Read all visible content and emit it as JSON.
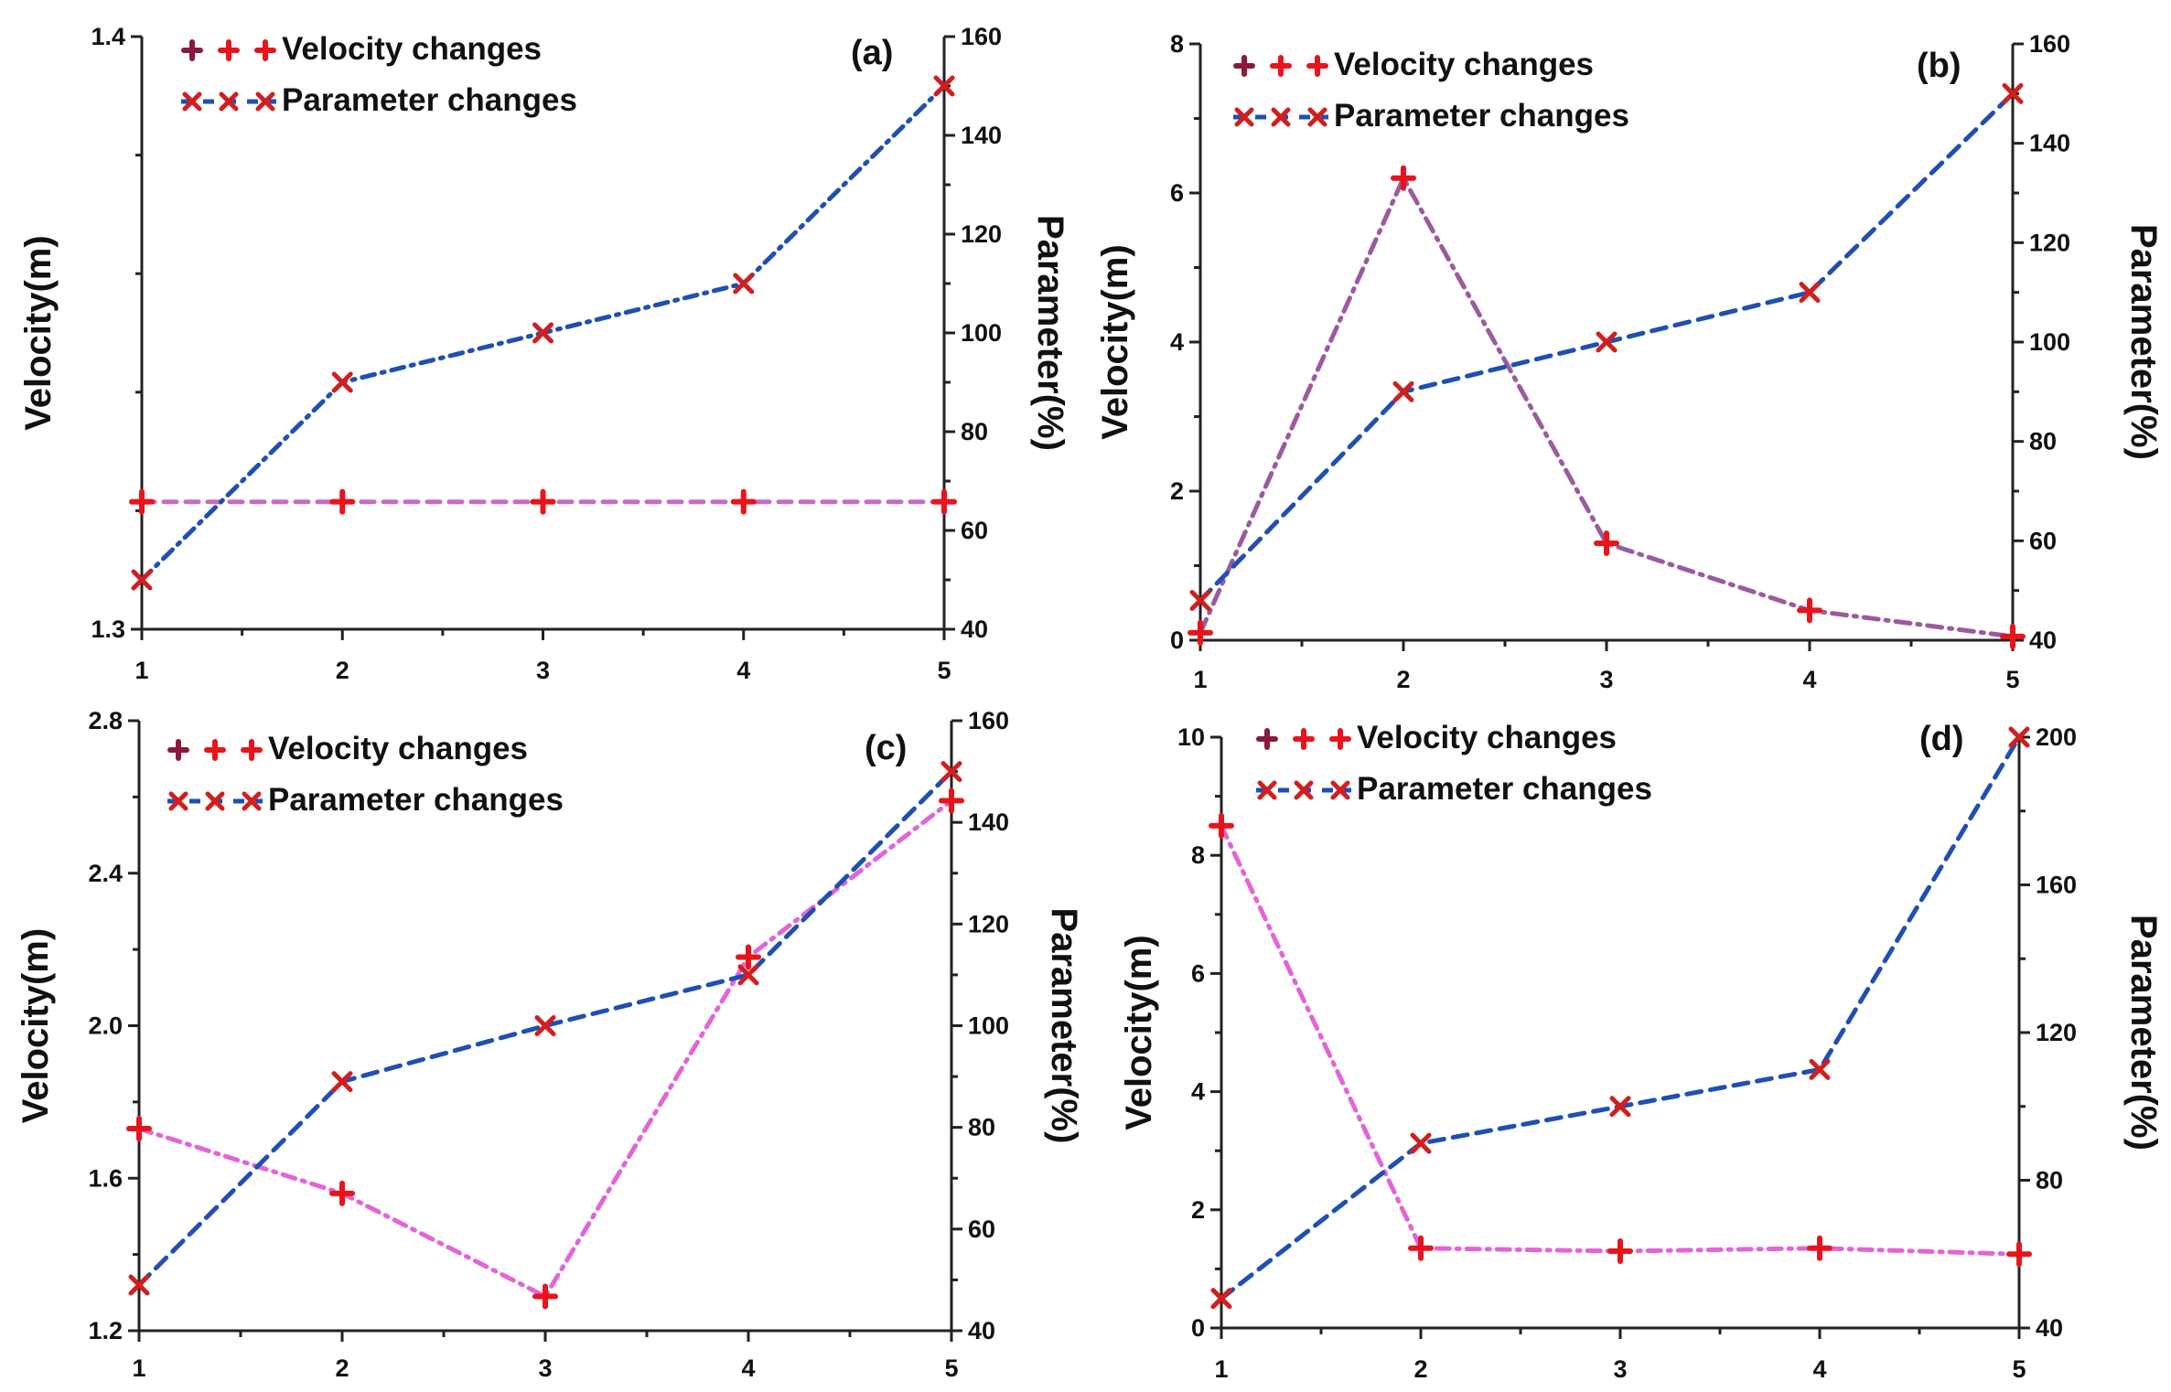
{
  "figure": {
    "colors": {
      "axis": "#222222",
      "velocity_marker": "#e8141c",
      "parameter_marker": "#d21e1e",
      "legend_velocity_dark": "#8b1a3a",
      "legend_parameter_blue": "#1f4fb4"
    }
  },
  "chart_data": [
    {
      "type": "line",
      "panel": "(a)",
      "x": [
        1,
        2,
        3,
        4,
        5
      ],
      "xticks": [
        "1",
        "2",
        "3",
        "4",
        "5"
      ],
      "ylabel": "Velocity(m)",
      "ylim": [
        1.3,
        1.4
      ],
      "yticks": [
        "1.3",
        "1.4"
      ],
      "y2label": "Parameter(%)",
      "y2lim": [
        40,
        160
      ],
      "y2ticks": [
        "40",
        "60",
        "80",
        "100",
        "120",
        "140",
        "160"
      ],
      "legend": [
        "Velocity changes",
        "Parameter changes"
      ],
      "legend_placement": "top-left",
      "series": [
        {
          "name": "Velocity changes",
          "axis": "left",
          "values": [
            1.3215,
            1.3215,
            1.3215,
            1.3215,
            1.3215
          ],
          "color": "#c86bc4",
          "dash": "14 10"
        },
        {
          "name": "Parameter changes",
          "axis": "right",
          "values": [
            50,
            90,
            100,
            110,
            150
          ],
          "color": "#1f4fb4",
          "dash": "14 8 3 8"
        }
      ]
    },
    {
      "type": "line",
      "panel": "(b)",
      "x": [
        1,
        2,
        3,
        4,
        5
      ],
      "xticks": [
        "1",
        "2",
        "3",
        "4",
        "5"
      ],
      "ylabel": "Velocity(m)",
      "ylim": [
        0,
        8
      ],
      "yticks": [
        "0",
        "2",
        "4",
        "6",
        "8"
      ],
      "y2label": "Parameter(%)",
      "y2lim": [
        40,
        160
      ],
      "y2ticks": [
        "40",
        "60",
        "80",
        "100",
        "120",
        "140",
        "160"
      ],
      "legend": [
        "Velocity changes",
        "Parameter changes"
      ],
      "legend_placement": "top-left",
      "series": [
        {
          "name": "Velocity changes",
          "axis": "left",
          "values": [
            0.1,
            6.2,
            1.3,
            0.4,
            0.05
          ],
          "color": "#9b5a9e",
          "dash": "16 8 3 8"
        },
        {
          "name": "Parameter changes",
          "axis": "right",
          "values": [
            48,
            90,
            100,
            110,
            150
          ],
          "color": "#1f4fb4",
          "dash": "16 10"
        }
      ]
    },
    {
      "type": "line",
      "panel": "(c)",
      "x": [
        1,
        2,
        3,
        4,
        5
      ],
      "xticks": [
        "1",
        "2",
        "3",
        "4",
        "5"
      ],
      "ylabel": "Velocity(m)",
      "ylim": [
        1.2,
        2.8
      ],
      "yticks": [
        "1.2",
        "1.6",
        "2.0",
        "2.4",
        "2.8"
      ],
      "y2label": "Parameter(%)",
      "y2lim": [
        40,
        160
      ],
      "y2ticks": [
        "40",
        "60",
        "80",
        "100",
        "120",
        "140",
        "160"
      ],
      "legend": [
        "Velocity changes",
        "Parameter changes"
      ],
      "legend_placement": "top-left",
      "series": [
        {
          "name": "Velocity changes",
          "axis": "left",
          "values": [
            1.73,
            1.56,
            1.29,
            2.18,
            2.59
          ],
          "color": "#e364d6",
          "dash": "14 8 3 8"
        },
        {
          "name": "Parameter changes",
          "axis": "right",
          "values": [
            49,
            89,
            100,
            110,
            150
          ],
          "color": "#1f4fb4",
          "dash": "16 10"
        }
      ]
    },
    {
      "type": "line",
      "panel": "(d)",
      "x": [
        1,
        2,
        3,
        4,
        5
      ],
      "xticks": [
        "1",
        "2",
        "3",
        "4",
        "5"
      ],
      "ylabel": "Velocity(m)",
      "ylim": [
        0,
        10
      ],
      "yticks": [
        "0",
        "2",
        "4",
        "6",
        "8",
        "10"
      ],
      "y2label": "Parameter(%)",
      "y2lim": [
        40,
        200
      ],
      "y2ticks": [
        "40",
        "80",
        "120",
        "160",
        "200"
      ],
      "legend": [
        "Velocity changes",
        "Parameter changes"
      ],
      "legend_placement": "top-left",
      "series": [
        {
          "name": "Velocity changes",
          "axis": "left",
          "values": [
            8.5,
            1.35,
            1.3,
            1.35,
            1.25
          ],
          "color": "#e364d6",
          "dash": "14 8 3 8"
        },
        {
          "name": "Parameter changes",
          "axis": "right",
          "values": [
            48,
            90,
            100,
            110,
            200
          ],
          "color": "#1f4fb4",
          "dash": "16 10"
        }
      ]
    }
  ]
}
